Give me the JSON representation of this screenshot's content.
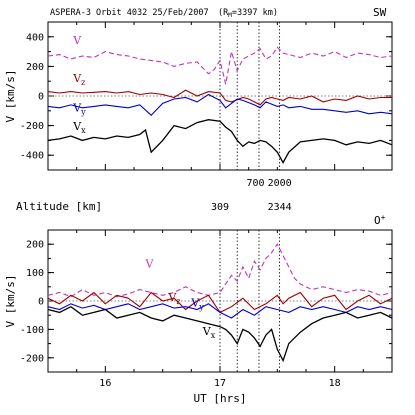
{
  "header": {
    "left": "ASPERA-3  Orbit 4032  25/Feb/2007",
    "rm_prefix": "(R",
    "rm_sub": "M",
    "rm_suffix": "=3397 km)",
    "right": "SW"
  },
  "altitude": {
    "label": "Altitude [km]",
    "upper_ticks": [
      {
        "x": 17.31,
        "label": "700"
      },
      {
        "x": 17.52,
        "label": "2000"
      }
    ],
    "lower_ticks": [
      {
        "x": 17.0,
        "label": "309"
      },
      {
        "x": 17.52,
        "label": "2344"
      }
    ]
  },
  "chart_data": [
    {
      "type": "line",
      "panel": "top",
      "title": "",
      "corner_label": "",
      "ylabel": "V [km/s]",
      "xlim": [
        15.5,
        18.5
      ],
      "ylim": [
        -500,
        500
      ],
      "yticks": [
        400,
        200,
        0,
        -200,
        -400
      ],
      "vlines": [
        17.0,
        17.15,
        17.34,
        17.52
      ],
      "series": [
        {
          "name": "V",
          "color": "#c033c0",
          "dash": true,
          "label_pos": [
            15.72,
            350
          ],
          "x": [
            15.5,
            15.6,
            15.7,
            15.8,
            15.9,
            16.0,
            16.1,
            16.2,
            16.3,
            16.4,
            16.5,
            16.6,
            16.7,
            16.8,
            16.9,
            16.95,
            17.0,
            17.05,
            17.1,
            17.15,
            17.2,
            17.25,
            17.3,
            17.35,
            17.4,
            17.45,
            17.5,
            17.55,
            17.6,
            17.7,
            17.8,
            17.9,
            18.0,
            18.1,
            18.2,
            18.3,
            18.4,
            18.5
          ],
          "y": [
            270,
            280,
            250,
            270,
            260,
            300,
            280,
            270,
            250,
            240,
            230,
            200,
            220,
            230,
            150,
            180,
            240,
            80,
            300,
            170,
            250,
            270,
            290,
            320,
            250,
            270,
            330,
            290,
            280,
            260,
            290,
            270,
            300,
            260,
            290,
            280,
            260,
            270
          ]
        },
        {
          "name": "Vz",
          "color": "#a00000",
          "dash": false,
          "label_pos": [
            15.72,
            95
          ],
          "x": [
            15.5,
            15.6,
            15.7,
            15.8,
            15.9,
            16.0,
            16.1,
            16.2,
            16.3,
            16.4,
            16.5,
            16.6,
            16.7,
            16.8,
            16.9,
            17.0,
            17.05,
            17.1,
            17.2,
            17.25,
            17.3,
            17.35,
            17.4,
            17.45,
            17.5,
            17.55,
            17.6,
            17.7,
            17.8,
            17.9,
            18.0,
            18.1,
            18.2,
            18.3,
            18.4,
            18.5
          ],
          "y": [
            30,
            20,
            30,
            20,
            25,
            30,
            20,
            30,
            10,
            20,
            10,
            -10,
            40,
            0,
            30,
            20,
            -30,
            -40,
            -10,
            -20,
            -40,
            -60,
            -20,
            -10,
            -20,
            -30,
            -10,
            -20,
            0,
            -40,
            -20,
            -30,
            0,
            -20,
            -10,
            -10
          ]
        },
        {
          "name": "Vy",
          "color": "#0000cc",
          "dash": false,
          "label_pos": [
            15.72,
            -105
          ],
          "x": [
            15.5,
            15.6,
            15.7,
            15.8,
            15.9,
            16.0,
            16.1,
            16.2,
            16.3,
            16.4,
            16.5,
            16.6,
            16.7,
            16.8,
            16.9,
            17.0,
            17.05,
            17.1,
            17.15,
            17.2,
            17.3,
            17.35,
            17.4,
            17.5,
            17.55,
            17.6,
            17.7,
            17.8,
            17.9,
            18.0,
            18.1,
            18.2,
            18.3,
            18.4,
            18.5
          ],
          "y": [
            -70,
            -80,
            -60,
            -80,
            -70,
            -60,
            -70,
            -80,
            -60,
            -130,
            -50,
            -20,
            -10,
            -40,
            10,
            -30,
            -80,
            -50,
            -20,
            -30,
            -60,
            -80,
            -40,
            -70,
            -60,
            -80,
            -70,
            -90,
            -90,
            -100,
            -110,
            -100,
            -120,
            -110,
            -120
          ]
        },
        {
          "name": "Vx",
          "color": "#000000",
          "dash": false,
          "label_pos": [
            15.72,
            -230
          ],
          "x": [
            15.5,
            15.6,
            15.7,
            15.8,
            15.9,
            16.0,
            16.1,
            16.2,
            16.3,
            16.35,
            16.4,
            16.5,
            16.6,
            16.7,
            16.8,
            16.9,
            17.0,
            17.05,
            17.1,
            17.15,
            17.2,
            17.25,
            17.3,
            17.35,
            17.4,
            17.45,
            17.5,
            17.55,
            17.6,
            17.7,
            17.8,
            17.9,
            18.0,
            18.1,
            18.2,
            18.3,
            18.4,
            18.5
          ],
          "y": [
            -300,
            -290,
            -270,
            -300,
            -280,
            -290,
            -270,
            -280,
            -260,
            -230,
            -380,
            -300,
            -200,
            -220,
            -180,
            -160,
            -170,
            -210,
            -240,
            -300,
            -340,
            -310,
            -320,
            -300,
            -310,
            -340,
            -380,
            -450,
            -380,
            -310,
            -300,
            -290,
            -300,
            -330,
            -310,
            -320,
            -300,
            -330
          ]
        }
      ]
    },
    {
      "type": "line",
      "panel": "bottom",
      "title": "",
      "corner_label": "O+",
      "ylabel": "V [km/s]",
      "xlabel": "UT [hrs]",
      "xlim": [
        15.5,
        18.5
      ],
      "xticks": [
        16,
        17,
        18
      ],
      "ylim": [
        -250,
        250
      ],
      "yticks": [
        200,
        100,
        0,
        -100,
        -200
      ],
      "vlines": [
        17.0,
        17.15,
        17.34,
        17.52
      ],
      "series": [
        {
          "name": "V",
          "color": "#c033c0",
          "dash": true,
          "label_pos": [
            16.35,
            118
          ],
          "x": [
            15.5,
            15.6,
            15.7,
            15.8,
            15.9,
            16.0,
            16.1,
            16.2,
            16.3,
            16.4,
            16.5,
            16.6,
            16.7,
            16.8,
            16.9,
            17.0,
            17.05,
            17.1,
            17.15,
            17.2,
            17.25,
            17.3,
            17.35,
            17.4,
            17.45,
            17.5,
            17.55,
            17.6,
            17.65,
            17.7,
            17.8,
            17.9,
            18.0,
            18.1,
            18.2,
            18.3,
            18.4,
            18.5
          ],
          "y": [
            20,
            30,
            15,
            40,
            20,
            30,
            15,
            25,
            40,
            30,
            20,
            30,
            50,
            30,
            20,
            30,
            60,
            90,
            70,
            120,
            80,
            140,
            110,
            150,
            170,
            200,
            160,
            120,
            80,
            60,
            40,
            50,
            40,
            30,
            40,
            35,
            20,
            30
          ]
        },
        {
          "name": "Vz",
          "color": "#a00000",
          "dash": false,
          "label_pos": [
            16.55,
            0
          ],
          "x": [
            15.5,
            15.6,
            15.7,
            15.8,
            15.9,
            16.0,
            16.1,
            16.2,
            16.3,
            16.4,
            16.5,
            16.6,
            16.7,
            16.8,
            16.9,
            17.0,
            17.1,
            17.2,
            17.3,
            17.4,
            17.5,
            17.55,
            17.6,
            17.7,
            17.8,
            17.9,
            18.0,
            18.1,
            18.2,
            18.3,
            18.4,
            18.5
          ],
          "y": [
            10,
            -10,
            20,
            0,
            30,
            -10,
            20,
            10,
            -20,
            30,
            0,
            10,
            -30,
            0,
            20,
            -40,
            -20,
            10,
            -30,
            -10,
            20,
            -10,
            10,
            30,
            -20,
            10,
            20,
            -30,
            0,
            20,
            -10,
            10
          ]
        },
        {
          "name": "Vy",
          "color": "#0000cc",
          "dash": false,
          "label_pos": [
            16.75,
            -20
          ],
          "x": [
            15.5,
            15.6,
            15.7,
            15.8,
            15.9,
            16.0,
            16.1,
            16.2,
            16.3,
            16.4,
            16.5,
            16.6,
            16.7,
            16.8,
            16.9,
            17.0,
            17.1,
            17.2,
            17.3,
            17.4,
            17.5,
            17.6,
            17.7,
            17.8,
            17.9,
            18.0,
            18.1,
            18.2,
            18.3,
            18.4,
            18.5
          ],
          "y": [
            -20,
            -30,
            -10,
            -25,
            -15,
            -30,
            -20,
            -10,
            -30,
            -20,
            -10,
            -25,
            -20,
            -30,
            -10,
            -40,
            -60,
            -30,
            -50,
            -20,
            -30,
            -40,
            -20,
            -30,
            -20,
            -30,
            -40,
            -20,
            -30,
            -20,
            -30
          ]
        },
        {
          "name": "Vx",
          "color": "#000000",
          "dash": false,
          "label_pos": [
            16.85,
            -120
          ],
          "x": [
            15.5,
            15.6,
            15.7,
            15.8,
            15.9,
            16.0,
            16.1,
            16.2,
            16.3,
            16.4,
            16.5,
            16.6,
            16.7,
            16.8,
            16.9,
            17.0,
            17.05,
            17.1,
            17.15,
            17.2,
            17.25,
            17.3,
            17.35,
            17.4,
            17.45,
            17.5,
            17.55,
            17.6,
            17.7,
            17.8,
            17.9,
            18.0,
            18.1,
            18.2,
            18.3,
            18.4,
            18.5
          ],
          "y": [
            -30,
            -40,
            -20,
            -50,
            -40,
            -30,
            -60,
            -50,
            -40,
            -60,
            -70,
            -50,
            -60,
            -70,
            -80,
            -90,
            -100,
            -120,
            -150,
            -100,
            -110,
            -130,
            -160,
            -120,
            -100,
            -170,
            -210,
            -150,
            -110,
            -80,
            -60,
            -50,
            -40,
            -60,
            -50,
            -40,
            -60
          ]
        }
      ]
    }
  ]
}
